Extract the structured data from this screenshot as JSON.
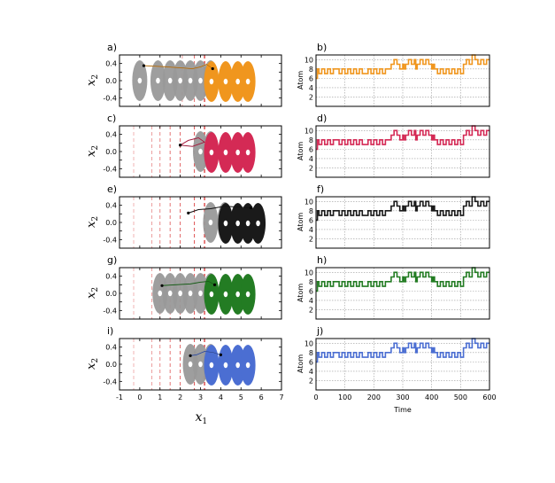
{
  "figure": {
    "x_axis_label_left": "x",
    "x_axis_label_left_sub": "1",
    "y_axis_label_left": "x",
    "y_axis_label_left_sub": "2",
    "y_axis_label_right": "Atom",
    "x_axis_label_right": "Time"
  },
  "colors": {
    "grey": "#999999",
    "orange": "#f0961e",
    "crimson": "#d42a55",
    "black": "#1a1a1a",
    "green": "#237c23",
    "blue": "#4b6ed2",
    "guide_line": "#d62728"
  },
  "chart_data": [
    {
      "panel": "a)",
      "type": "scatter",
      "xlim": [
        -1,
        7
      ],
      "ylim": [
        -0.6,
        0.6
      ],
      "xticks": [
        -1,
        0,
        1,
        2,
        3,
        4,
        5,
        6,
        7
      ],
      "yticks": [
        0.4,
        0.2,
        0.0,
        -0.2,
        -0.4
      ],
      "grey_blob_centers_x": [
        0,
        0.9,
        1.5,
        2.0,
        2.5,
        3.0,
        3.5
      ],
      "colored_blob_centers_x": [
        3.5,
        4.2,
        4.8,
        5.3
      ],
      "series_color": "orange",
      "guide_lines_x": [
        2.1,
        2.7,
        3.2
      ],
      "trajectory": [
        [
          0.2,
          0.35
        ],
        [
          1.0,
          0.33
        ],
        [
          2.0,
          0.3
        ],
        [
          2.6,
          0.28
        ],
        [
          3.0,
          0.32
        ],
        [
          3.3,
          0.38
        ],
        [
          3.6,
          0.28
        ]
      ]
    },
    {
      "panel": "b)",
      "type": "line",
      "xlim": [
        0,
        600
      ],
      "ylim": [
        0,
        11
      ],
      "yticks": [
        10,
        8,
        6,
        4,
        2
      ],
      "series_color": "orange"
    },
    {
      "panel": "c)",
      "type": "scatter",
      "xlim": [
        -1,
        7
      ],
      "ylim": [
        -0.6,
        0.6
      ],
      "xticks": [
        -1,
        0,
        1,
        2,
        3,
        4,
        5,
        6,
        7
      ],
      "yticks": [
        0.4,
        0.2,
        0.0,
        -0.2,
        -0.4
      ],
      "grey_blob_centers_x": [
        3.0,
        3.5
      ],
      "colored_blob_centers_x": [
        3.5,
        4.2,
        4.8,
        5.3
      ],
      "series_color": "crimson",
      "guide_lines_x": [
        -0.3,
        0.6,
        1.0,
        1.5,
        2.0,
        2.7,
        3.2
      ],
      "trajectory": [
        [
          2.0,
          0.15
        ],
        [
          2.4,
          0.26
        ],
        [
          2.9,
          0.32
        ],
        [
          3.2,
          0.22
        ],
        [
          2.6,
          0.12
        ],
        [
          2.0,
          0.15
        ]
      ]
    },
    {
      "panel": "d)",
      "type": "line",
      "xlim": [
        0,
        600
      ],
      "ylim": [
        0,
        11
      ],
      "yticks": [
        10,
        8,
        6,
        4,
        2
      ],
      "series_color": "crimson"
    },
    {
      "panel": "e)",
      "type": "scatter",
      "xlim": [
        -1,
        7
      ],
      "ylim": [
        -0.6,
        0.6
      ],
      "xticks": [
        -1,
        0,
        1,
        2,
        3,
        4,
        5,
        6,
        7
      ],
      "yticks": [
        0.4,
        0.2,
        0.0,
        -0.2,
        -0.4
      ],
      "grey_blob_centers_x": [
        3.5,
        4.2
      ],
      "colored_blob_centers_x": [
        4.2,
        4.8,
        5.3,
        5.8
      ],
      "series_color": "black",
      "guide_lines_x": [
        -0.3,
        0.6,
        1.0,
        1.5,
        2.0,
        2.7,
        3.2
      ],
      "trajectory": [
        [
          2.4,
          0.22
        ],
        [
          2.9,
          0.3
        ],
        [
          3.5,
          0.32
        ],
        [
          4.2,
          0.38
        ],
        [
          4.8,
          0.36
        ],
        [
          5.5,
          0.34
        ]
      ]
    },
    {
      "panel": "f)",
      "type": "line",
      "xlim": [
        0,
        600
      ],
      "ylim": [
        0,
        11
      ],
      "yticks": [
        10,
        8,
        6,
        4,
        2
      ],
      "series_color": "black"
    },
    {
      "panel": "g)",
      "type": "scatter",
      "xlim": [
        -1,
        7
      ],
      "ylim": [
        -0.6,
        0.6
      ],
      "xticks": [
        -1,
        0,
        1,
        2,
        3,
        4,
        5,
        6,
        7
      ],
      "yticks": [
        0.4,
        0.2,
        0.0,
        -0.2,
        -0.4
      ],
      "grey_blob_centers_x": [
        1.0,
        1.5,
        2.0,
        2.5,
        3.0,
        3.5
      ],
      "colored_blob_centers_x": [
        3.5,
        4.2,
        4.8,
        5.3
      ],
      "series_color": "green",
      "guide_lines_x": [
        -0.3,
        0.6,
        1.0,
        1.5,
        2.0,
        2.7,
        3.2
      ],
      "trajectory": [
        [
          1.1,
          0.18
        ],
        [
          1.8,
          0.2
        ],
        [
          2.5,
          0.22
        ],
        [
          3.0,
          0.26
        ],
        [
          3.4,
          0.28
        ],
        [
          3.7,
          0.2
        ]
      ]
    },
    {
      "panel": "h)",
      "type": "line",
      "xlim": [
        0,
        600
      ],
      "ylim": [
        0,
        11
      ],
      "yticks": [
        10,
        8,
        6,
        4,
        2
      ],
      "series_color": "green"
    },
    {
      "panel": "i)",
      "type": "scatter",
      "xlim": [
        -1,
        7
      ],
      "ylim": [
        -0.6,
        0.6
      ],
      "xticks": [
        -1,
        0,
        1,
        2,
        3,
        4,
        5,
        6,
        7
      ],
      "yticks": [
        0.4,
        0.2,
        0.0,
        -0.2,
        -0.4
      ],
      "grey_blob_centers_x": [
        2.5,
        3.0,
        3.5
      ],
      "colored_blob_centers_x": [
        3.5,
        4.2,
        4.8,
        5.3
      ],
      "series_color": "blue",
      "guide_lines_x": [
        -0.3,
        0.6,
        1.0,
        1.5,
        2.0,
        2.7,
        3.2
      ],
      "trajectory": [
        [
          2.5,
          0.2
        ],
        [
          2.8,
          0.22
        ],
        [
          3.2,
          0.3
        ],
        [
          3.6,
          0.28
        ],
        [
          4.0,
          0.22
        ]
      ]
    },
    {
      "panel": "j)",
      "type": "line",
      "xlim": [
        0,
        600
      ],
      "ylim": [
        0,
        11
      ],
      "yticks": [
        10,
        8,
        6,
        4,
        2
      ],
      "xticks": [
        0,
        100,
        200,
        300,
        400,
        500,
        600
      ],
      "series_color": "blue"
    },
    {
      "type": "step",
      "description_key": "atom_time_series_shared",
      "x": [
        0,
        5,
        10,
        20,
        30,
        40,
        50,
        60,
        80,
        90,
        100,
        110,
        120,
        130,
        140,
        150,
        160,
        180,
        190,
        200,
        210,
        220,
        230,
        240,
        250,
        260,
        270,
        280,
        290,
        300,
        305,
        310,
        320,
        330,
        340,
        345,
        350,
        360,
        370,
        380,
        390,
        400,
        405,
        410,
        420,
        430,
        440,
        450,
        460,
        470,
        480,
        490,
        500,
        510,
        520,
        530,
        540,
        550,
        560,
        570,
        580,
        590,
        600
      ],
      "y": [
        6,
        8,
        7,
        8,
        7,
        8,
        7,
        8,
        7,
        8,
        7,
        8,
        7,
        8,
        7,
        8,
        7,
        8,
        7,
        8,
        7,
        8,
        7,
        8,
        8,
        9,
        10,
        9,
        8,
        9,
        8,
        9,
        10,
        9,
        10,
        8,
        9,
        10,
        9,
        10,
        9,
        8,
        9,
        8,
        7,
        8,
        7,
        8,
        7,
        8,
        7,
        8,
        7,
        9,
        10,
        9,
        11,
        10,
        9,
        10,
        9,
        10,
        10
      ]
    }
  ]
}
